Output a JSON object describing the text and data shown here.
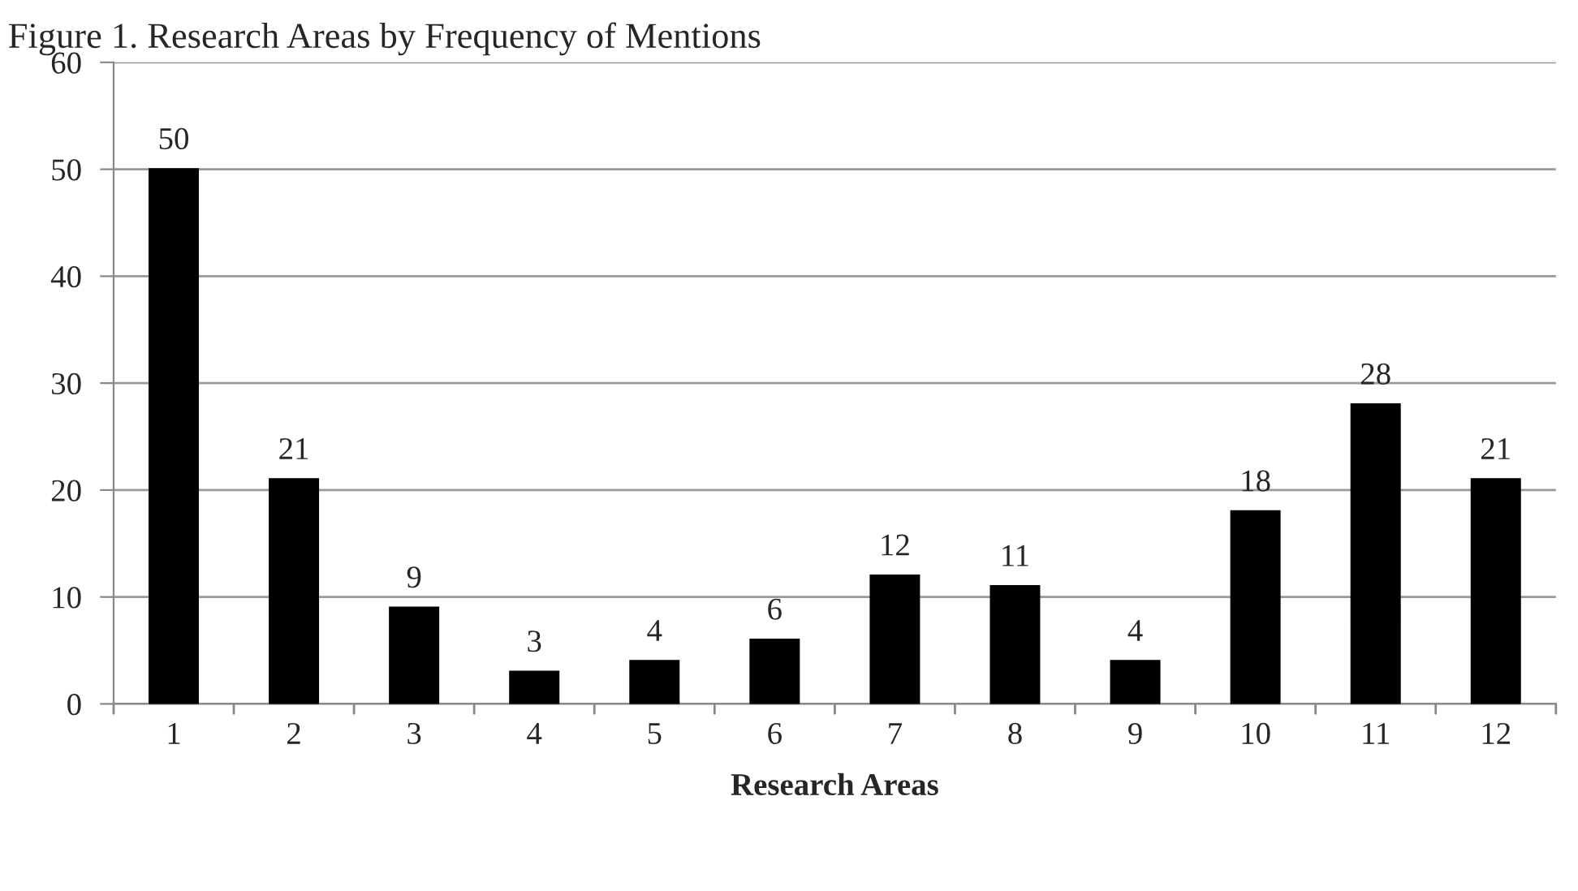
{
  "chart_data": {
    "type": "bar",
    "title": "Figure 1. Research Areas by Frequency of Mentions",
    "xlabel": "Research Areas",
    "categories": [
      "1",
      "2",
      "3",
      "4",
      "5",
      "6",
      "7",
      "8",
      "9",
      "10",
      "11",
      "12"
    ],
    "values": [
      50,
      21,
      9,
      3,
      4,
      6,
      12,
      11,
      4,
      18,
      28,
      21
    ],
    "color": "#000000",
    "ylim": [
      0,
      60
    ],
    "yticks": [
      0,
      10,
      20,
      30,
      40,
      50,
      60
    ],
    "grid": "y",
    "data_labels": true
  }
}
